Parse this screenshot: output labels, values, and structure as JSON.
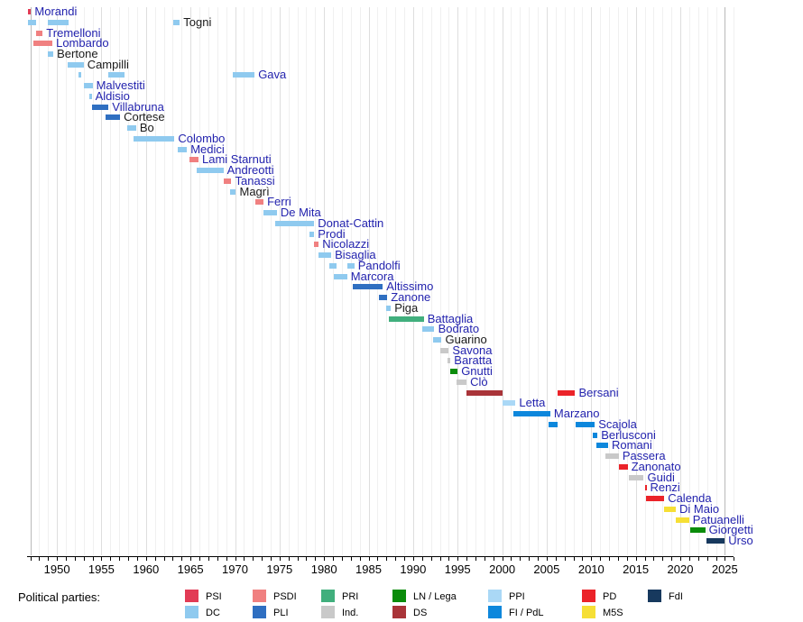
{
  "chart_data": {
    "type": "timeline",
    "title": "",
    "x_axis": {
      "start_year": 1946.7,
      "end_year": 2026,
      "tick_interval": 1,
      "tick_labels": [
        "1950",
        "1955",
        "1960",
        "1965",
        "1970",
        "1975",
        "1980",
        "1985",
        "1990",
        "1995",
        "2000",
        "2005",
        "2010",
        "2015",
        "2020",
        "2025"
      ],
      "label_years": [
        1950,
        1955,
        1960,
        1965,
        1970,
        1975,
        1980,
        1985,
        1990,
        1995,
        2000,
        2005,
        2010,
        2015,
        2020,
        2025
      ]
    },
    "parties": {
      "PSI": {
        "label": "PSI",
        "color": "#E23B55"
      },
      "PSDI": {
        "label": "PSDI",
        "color": "#F08080"
      },
      "PRI": {
        "label": "PRI",
        "color": "#41AF7D"
      },
      "LN": {
        "label": "LN / Lega",
        "color": "#0B8C0B"
      },
      "PPI": {
        "label": "PPI",
        "color": "#AAD8F6"
      },
      "PD": {
        "label": "PD",
        "color": "#EB2329"
      },
      "FdI": {
        "label": "FdI",
        "color": "#17395E"
      },
      "DC": {
        "label": "DC",
        "color": "#8FCAEF"
      },
      "PLI": {
        "label": "PLI",
        "color": "#2F6FC1"
      },
      "IND": {
        "label": "Ind.",
        "color": "#C9C9C9"
      },
      "DS": {
        "label": "DS",
        "color": "#A93439"
      },
      "FI": {
        "label": "FI / PdL",
        "color": "#0D87DC"
      },
      "M5S": {
        "label": "M5S",
        "color": "#F6DF35"
      }
    },
    "ministers": [
      {
        "name": "Morandi",
        "link": true,
        "terms": [
          {
            "start": 1946.7,
            "end": 1947.1,
            "party": "PSI"
          }
        ]
      },
      {
        "name": "Togni",
        "link": false,
        "terms": [
          {
            "start": 1946.7,
            "end": 1947.7,
            "party": "DC"
          },
          {
            "start": 1949.0,
            "end": 1951.3,
            "party": "DC"
          },
          {
            "start": 1963.1,
            "end": 1963.8,
            "party": "DC"
          }
        ]
      },
      {
        "name": "Tremelloni",
        "link": true,
        "terms": [
          {
            "start": 1947.7,
            "end": 1948.4,
            "party": "PSDI"
          }
        ]
      },
      {
        "name": "Lombardo",
        "link": true,
        "terms": [
          {
            "start": 1947.4,
            "end": 1949.5,
            "party": "PSDI"
          }
        ]
      },
      {
        "name": "Bertone",
        "link": false,
        "terms": [
          {
            "start": 1949.0,
            "end": 1949.6,
            "party": "DC"
          }
        ]
      },
      {
        "name": "Campilli",
        "link": false,
        "terms": [
          {
            "start": 1951.2,
            "end": 1953.0,
            "party": "DC"
          }
        ]
      },
      {
        "name": "Gava",
        "link": true,
        "terms": [
          {
            "start": 1952.4,
            "end": 1952.7,
            "party": "DC"
          },
          {
            "start": 1955.8,
            "end": 1957.6,
            "party": "DC"
          },
          {
            "start": 1969.7,
            "end": 1972.2,
            "party": "DC"
          }
        ]
      },
      {
        "name": "Malvestiti",
        "link": true,
        "terms": [
          {
            "start": 1953.0,
            "end": 1954.0,
            "party": "DC"
          }
        ]
      },
      {
        "name": "Aldisio",
        "link": true,
        "terms": [
          {
            "start": 1953.6,
            "end": 1953.9,
            "party": "DC"
          }
        ]
      },
      {
        "name": "Villabruna",
        "link": true,
        "terms": [
          {
            "start": 1953.9,
            "end": 1955.8,
            "party": "PLI"
          }
        ]
      },
      {
        "name": "Cortese",
        "link": false,
        "terms": [
          {
            "start": 1955.5,
            "end": 1957.1,
            "party": "PLI"
          }
        ]
      },
      {
        "name": "Bo",
        "link": false,
        "terms": [
          {
            "start": 1957.9,
            "end": 1958.9,
            "party": "DC"
          }
        ]
      },
      {
        "name": "Colombo",
        "link": true,
        "terms": [
          {
            "start": 1958.6,
            "end": 1963.2,
            "party": "DC"
          }
        ]
      },
      {
        "name": "Medici",
        "link": true,
        "terms": [
          {
            "start": 1963.6,
            "end": 1964.6,
            "party": "DC"
          }
        ]
      },
      {
        "name": "Lami Starnuti",
        "link": true,
        "terms": [
          {
            "start": 1964.9,
            "end": 1965.9,
            "party": "PSDI"
          }
        ]
      },
      {
        "name": "Andreotti",
        "link": true,
        "terms": [
          {
            "start": 1965.7,
            "end": 1968.7,
            "party": "DC"
          }
        ]
      },
      {
        "name": "Tanassi",
        "link": true,
        "terms": [
          {
            "start": 1968.7,
            "end": 1969.6,
            "party": "PSDI"
          }
        ]
      },
      {
        "name": "Magrì",
        "link": false,
        "terms": [
          {
            "start": 1969.4,
            "end": 1970.1,
            "party": "DC"
          }
        ]
      },
      {
        "name": "Ferri",
        "link": true,
        "terms": [
          {
            "start": 1972.3,
            "end": 1973.2,
            "party": "PSDI"
          }
        ]
      },
      {
        "name": "De Mita",
        "link": true,
        "terms": [
          {
            "start": 1973.2,
            "end": 1974.7,
            "party": "DC"
          }
        ]
      },
      {
        "name": "Donat-Cattin",
        "link": true,
        "terms": [
          {
            "start": 1974.5,
            "end": 1978.9,
            "party": "DC"
          }
        ]
      },
      {
        "name": "Prodi",
        "link": true,
        "terms": [
          {
            "start": 1978.4,
            "end": 1978.9,
            "party": "DC"
          }
        ]
      },
      {
        "name": "Nicolazzi",
        "link": true,
        "terms": [
          {
            "start": 1978.9,
            "end": 1979.4,
            "party": "PSDI"
          }
        ]
      },
      {
        "name": "Bisaglia",
        "link": true,
        "terms": [
          {
            "start": 1979.4,
            "end": 1980.8,
            "party": "DC"
          }
        ]
      },
      {
        "name": "Pandolfi",
        "link": true,
        "terms": [
          {
            "start": 1980.6,
            "end": 1981.4,
            "party": "DC"
          },
          {
            "start": 1982.6,
            "end": 1983.4,
            "party": "DC"
          }
        ]
      },
      {
        "name": "Marcora",
        "link": true,
        "terms": [
          {
            "start": 1981.1,
            "end": 1982.6,
            "party": "DC"
          }
        ]
      },
      {
        "name": "Altissimo",
        "link": true,
        "terms": [
          {
            "start": 1983.2,
            "end": 1986.6,
            "party": "PLI"
          }
        ]
      },
      {
        "name": "Zanone",
        "link": true,
        "terms": [
          {
            "start": 1986.2,
            "end": 1987.1,
            "party": "PLI"
          }
        ]
      },
      {
        "name": "Piga",
        "link": false,
        "terms": [
          {
            "start": 1987.0,
            "end": 1987.5,
            "party": "DC"
          }
        ]
      },
      {
        "name": "Battaglia",
        "link": true,
        "terms": [
          {
            "start": 1987.3,
            "end": 1991.2,
            "party": "PRI"
          }
        ]
      },
      {
        "name": "Bodrato",
        "link": true,
        "terms": [
          {
            "start": 1991.0,
            "end": 1992.4,
            "party": "DC"
          }
        ]
      },
      {
        "name": "Guarino",
        "link": false,
        "terms": [
          {
            "start": 1992.2,
            "end": 1993.2,
            "party": "DC"
          }
        ]
      },
      {
        "name": "Savona",
        "link": true,
        "terms": [
          {
            "start": 1993.0,
            "end": 1994.0,
            "party": "IND"
          }
        ]
      },
      {
        "name": "Baratta",
        "link": true,
        "terms": [
          {
            "start": 1993.9,
            "end": 1994.2,
            "party": "IND"
          }
        ]
      },
      {
        "name": "Gnutti",
        "link": true,
        "terms": [
          {
            "start": 1994.2,
            "end": 1995.0,
            "party": "LN"
          }
        ]
      },
      {
        "name": "Clò",
        "link": true,
        "terms": [
          {
            "start": 1994.9,
            "end": 1996.0,
            "party": "IND"
          }
        ]
      },
      {
        "name": "Bersani",
        "link": true,
        "terms": [
          {
            "start": 1996.0,
            "end": 2000.0,
            "party": "DS"
          },
          {
            "start": 2006.2,
            "end": 2008.2,
            "party": "PD"
          }
        ]
      },
      {
        "name": "Letta",
        "link": true,
        "terms": [
          {
            "start": 2000.0,
            "end": 2001.5,
            "party": "PPI"
          }
        ]
      },
      {
        "name": "Marzano",
        "link": true,
        "terms": [
          {
            "start": 2001.3,
            "end": 2005.4,
            "party": "FI"
          }
        ]
      },
      {
        "name": "Scajola",
        "link": true,
        "terms": [
          {
            "start": 2005.2,
            "end": 2006.2,
            "party": "FI"
          },
          {
            "start": 2008.2,
            "end": 2010.4,
            "party": "FI"
          }
        ]
      },
      {
        "name": "Berlusconi",
        "link": true,
        "terms": [
          {
            "start": 2010.2,
            "end": 2010.7,
            "party": "FI"
          }
        ]
      },
      {
        "name": "Romani",
        "link": true,
        "terms": [
          {
            "start": 2010.6,
            "end": 2011.9,
            "party": "FI"
          }
        ]
      },
      {
        "name": "Passera",
        "link": true,
        "terms": [
          {
            "start": 2011.6,
            "end": 2013.1,
            "party": "IND"
          }
        ]
      },
      {
        "name": "Zanonato",
        "link": true,
        "terms": [
          {
            "start": 2013.1,
            "end": 2014.1,
            "party": "PD"
          }
        ]
      },
      {
        "name": "Guidi",
        "link": true,
        "terms": [
          {
            "start": 2014.2,
            "end": 2015.9,
            "party": "IND"
          }
        ]
      },
      {
        "name": "Renzi",
        "link": true,
        "terms": [
          {
            "start": 2016.0,
            "end": 2016.2,
            "party": "PD"
          }
        ]
      },
      {
        "name": "Calenda",
        "link": true,
        "terms": [
          {
            "start": 2016.1,
            "end": 2018.2,
            "party": "PD"
          }
        ]
      },
      {
        "name": "Di Maio",
        "link": true,
        "terms": [
          {
            "start": 2018.2,
            "end": 2019.5,
            "party": "M5S"
          }
        ]
      },
      {
        "name": "Patuanelli",
        "link": true,
        "terms": [
          {
            "start": 2019.5,
            "end": 2021.0,
            "party": "M5S"
          }
        ]
      },
      {
        "name": "Giorgetti",
        "link": true,
        "terms": [
          {
            "start": 2021.1,
            "end": 2022.8,
            "party": "LN"
          }
        ]
      },
      {
        "name": "Urso",
        "link": true,
        "terms": [
          {
            "start": 2022.9,
            "end": 2025.0,
            "party": "FdI"
          }
        ]
      }
    ]
  },
  "legend": {
    "title": "Political parties:",
    "items": [
      {
        "party": "PSI",
        "col": 0,
        "row": 0
      },
      {
        "party": "PSDI",
        "col": 1,
        "row": 0
      },
      {
        "party": "PRI",
        "col": 2,
        "row": 0
      },
      {
        "party": "LN",
        "col": 3,
        "row": 0
      },
      {
        "party": "PPI",
        "col": 4,
        "row": 0
      },
      {
        "party": "PD",
        "col": 5,
        "row": 0
      },
      {
        "party": "FdI",
        "col": 6,
        "row": 0
      },
      {
        "party": "DC",
        "col": 0,
        "row": 1
      },
      {
        "party": "PLI",
        "col": 1,
        "row": 1
      },
      {
        "party": "IND",
        "col": 2,
        "row": 1
      },
      {
        "party": "DS",
        "col": 3,
        "row": 1
      },
      {
        "party": "FI",
        "col": 4,
        "row": 1
      },
      {
        "party": "M5S",
        "col": 5,
        "row": 1
      }
    ]
  }
}
